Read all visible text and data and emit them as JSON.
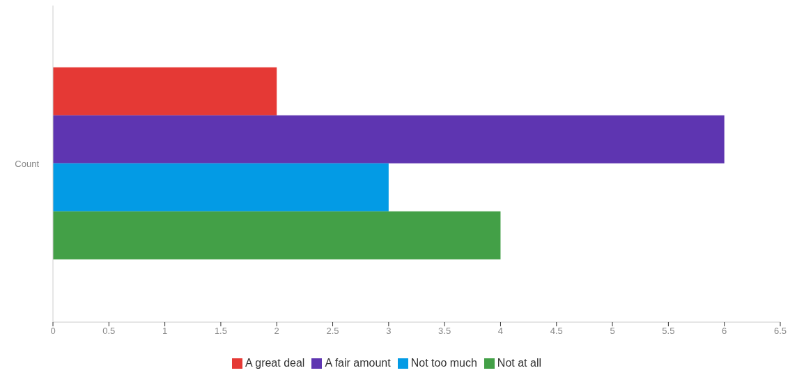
{
  "chart_data": {
    "type": "bar",
    "orientation": "horizontal",
    "categories": [
      "Count"
    ],
    "series": [
      {
        "name": "A great deal",
        "color": "#e53935",
        "values": [
          2
        ]
      },
      {
        "name": "A fair amount",
        "color": "#5e35b1",
        "values": [
          6
        ]
      },
      {
        "name": "Not too much",
        "color": "#039be5",
        "values": [
          3
        ]
      },
      {
        "name": "Not at all",
        "color": "#43a047",
        "values": [
          4
        ]
      }
    ],
    "xlim": [
      0,
      6.5
    ],
    "xticks": [
      0,
      0.5,
      1,
      1.5,
      2,
      2.5,
      3,
      3.5,
      4,
      4.5,
      5,
      5.5,
      6,
      6.5
    ],
    "legend": "bottom"
  }
}
